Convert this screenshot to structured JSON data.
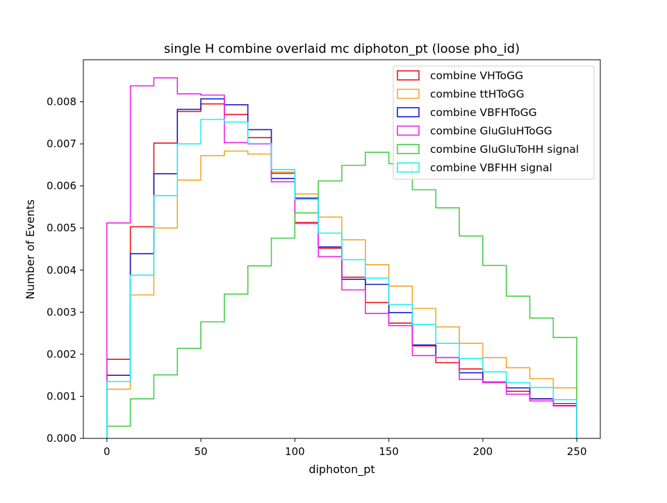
{
  "chart_data": {
    "type": "line",
    "subtype": "step-histogram",
    "title": "single H combine overlaid mc diphoton_pt (loose pho_id)",
    "xlabel": "diphoton_pt",
    "ylabel": "Number of Events",
    "xlim": [
      -12.5,
      262.5
    ],
    "ylim": [
      0,
      0.009
    ],
    "xticks": [
      0,
      50,
      100,
      150,
      200,
      250
    ],
    "xtick_labels": [
      "0",
      "50",
      "100",
      "150",
      "200",
      "250"
    ],
    "yticks": [
      0,
      0.001,
      0.002,
      0.003,
      0.004,
      0.005,
      0.006,
      0.007,
      0.008
    ],
    "ytick_labels": [
      "0.000",
      "0.001",
      "0.002",
      "0.003",
      "0.004",
      "0.005",
      "0.006",
      "0.007",
      "0.008"
    ],
    "grid": false,
    "legend_position": "top-right",
    "bin_edges": [
      0,
      12.5,
      25,
      37.5,
      50,
      62.5,
      75,
      87.5,
      100,
      112.5,
      125,
      137.5,
      150,
      162.5,
      175,
      187.5,
      200,
      212.5,
      225,
      237.5,
      250
    ],
    "series": [
      {
        "name": "combine VHToGG",
        "color": "#ee1111",
        "values": [
          0.00188,
          0.00503,
          0.00702,
          0.00777,
          0.00795,
          0.0077,
          0.00715,
          0.0063,
          0.00513,
          0.00452,
          0.00383,
          0.00323,
          0.00274,
          0.0022,
          0.0018,
          0.00165,
          0.00134,
          0.00112,
          0.00094,
          0.00083
        ]
      },
      {
        "name": "combine ttHToGG",
        "color": "#f5a623",
        "values": [
          0.00117,
          0.00341,
          0.005,
          0.00614,
          0.00672,
          0.00683,
          0.00676,
          0.00633,
          0.00581,
          0.00526,
          0.00472,
          0.00413,
          0.00362,
          0.00309,
          0.00265,
          0.00226,
          0.00192,
          0.00168,
          0.00142,
          0.0012
        ]
      },
      {
        "name": "combine VBFHToGG",
        "color": "#1a1acc",
        "values": [
          0.0015,
          0.00439,
          0.00629,
          0.00782,
          0.00807,
          0.00793,
          0.00734,
          0.00618,
          0.00571,
          0.00455,
          0.00378,
          0.00366,
          0.00299,
          0.00222,
          0.00192,
          0.00156,
          0.00133,
          0.0012,
          0.00094,
          0.00078
        ]
      },
      {
        "name": "combine GluGluHToGG",
        "color": "#ee22ee",
        "values": [
          0.00512,
          0.00838,
          0.00857,
          0.00819,
          0.00816,
          0.00703,
          0.007,
          0.0061,
          0.00511,
          0.00432,
          0.00353,
          0.00297,
          0.00268,
          0.00197,
          0.00192,
          0.0014,
          0.00133,
          0.00105,
          0.00089,
          0.00077
        ]
      },
      {
        "name": "combine GluGluToHH signal",
        "color": "#44cc44",
        "values": [
          0.00029,
          0.00094,
          0.00151,
          0.00214,
          0.00277,
          0.00343,
          0.0041,
          0.00476,
          0.00536,
          0.00612,
          0.00649,
          0.0068,
          0.00653,
          0.00591,
          0.00548,
          0.00481,
          0.00411,
          0.00338,
          0.00286,
          0.0024
        ]
      },
      {
        "name": "combine VBFHH signal",
        "color": "#22eeee",
        "values": [
          0.00135,
          0.00388,
          0.00577,
          0.007,
          0.00758,
          0.00752,
          0.00701,
          0.00639,
          0.00568,
          0.00488,
          0.00425,
          0.00381,
          0.00318,
          0.00271,
          0.00226,
          0.0019,
          0.00158,
          0.00132,
          0.00121,
          0.00092
        ]
      }
    ]
  }
}
